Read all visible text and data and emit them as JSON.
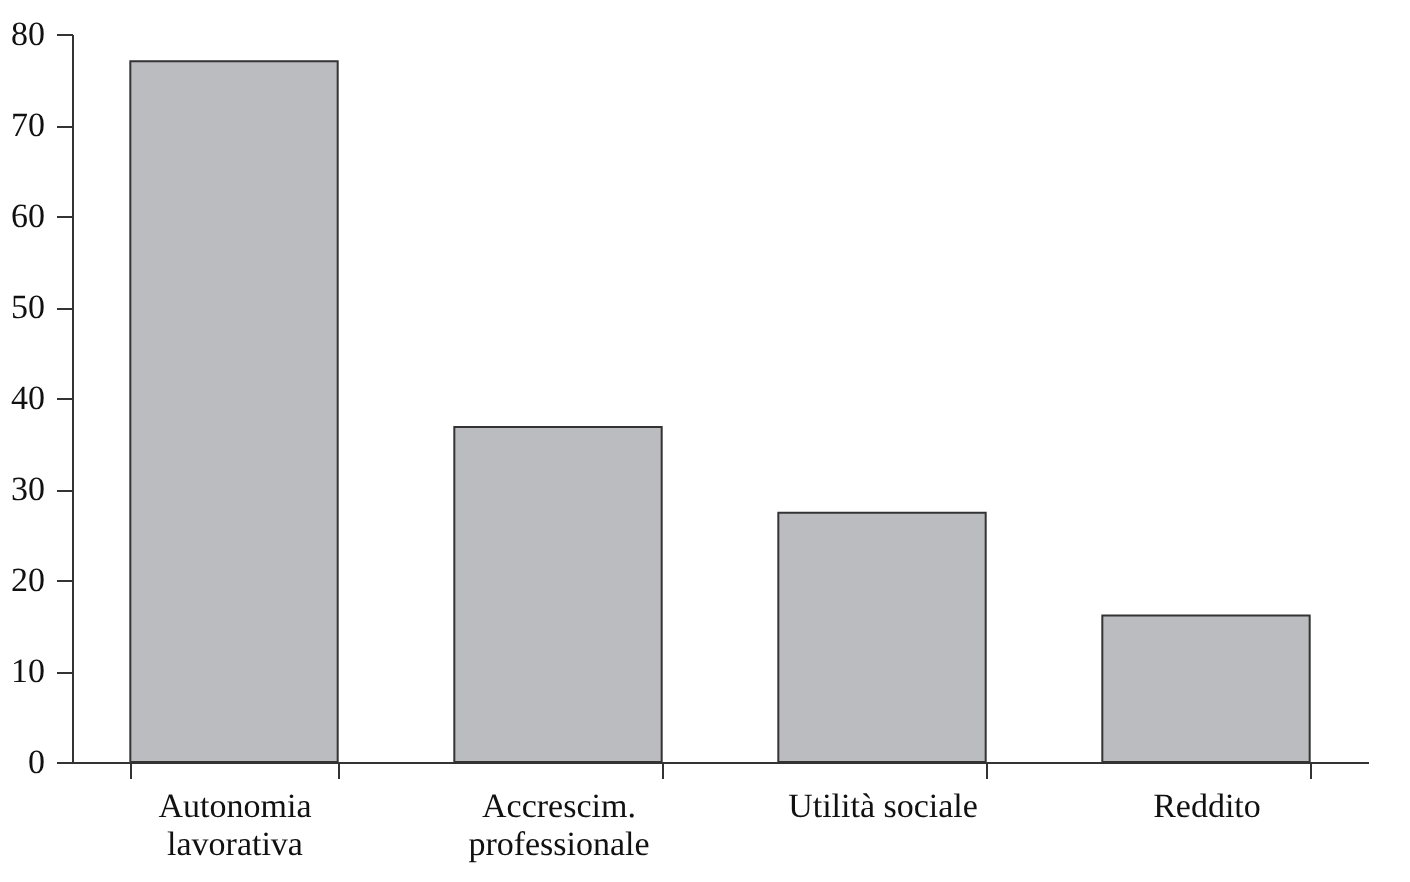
{
  "chart_data": {
    "type": "bar",
    "categories": [
      "Autonomia\nlavorativa",
      "Accrescim.\nprofessionale",
      "Utilità sociale",
      "Reddito"
    ],
    "values": [
      77.0,
      36.8,
      27.4,
      16.1
    ],
    "color": "#bbbcc0",
    "ylim": [
      0,
      80
    ],
    "yticks": [
      0,
      10,
      20,
      30,
      40,
      50,
      60,
      70,
      80
    ],
    "grid": false
  }
}
